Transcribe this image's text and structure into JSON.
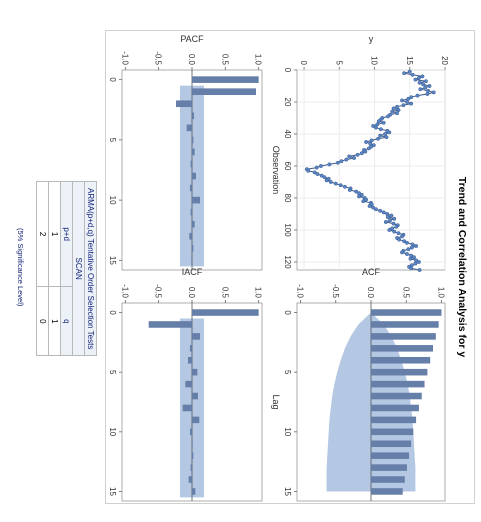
{
  "title": "Trend and Correlation Analysis for y",
  "colors": {
    "series": "#3a5a8c",
    "marker_fill": "#5a86c8",
    "bar": "#667fa8",
    "band": "#b4c8e4",
    "grid": "#e8e8e8"
  },
  "table": {
    "caption": "ARMA(p+d,q) Tentative Order Selection Tests",
    "method": "SCAN",
    "col_p": "p+d",
    "col_q": "q",
    "rows": [
      {
        "p": "1",
        "q": "1"
      },
      {
        "p": "2",
        "q": "0"
      }
    ],
    "note": "(5% Significance Level)"
  },
  "chart_data": [
    {
      "type": "line",
      "panel": "series",
      "xlabel": "Observation",
      "ylabel": "y",
      "xlim": [
        0,
        125
      ],
      "ylim": [
        -1,
        20
      ],
      "xticks": [
        0,
        20,
        40,
        60,
        80,
        100,
        120
      ],
      "yticks": [
        0,
        5,
        10,
        15,
        20
      ],
      "y": [
        15,
        14.2,
        15.4,
        16.8,
        16.3,
        15.8,
        17.3,
        16.4,
        16.9,
        17.8,
        17.2,
        16.5,
        17.6,
        18.4,
        17.5,
        16.1,
        15.2,
        14.8,
        13.9,
        14.6,
        15.2,
        14.1,
        13.2,
        12.7,
        13.4,
        12.5,
        13.2,
        12.2,
        11.9,
        11.1,
        10.9,
        10.6,
        11.3,
        10.4,
        9.8,
        10.2,
        10.9,
        11.8,
        12.1,
        11.5,
        10.8,
        11.7,
        10.5,
        9.6,
        8.8,
        9.4,
        9.9,
        9.5,
        9.2,
        8.5,
        8.7,
        8.2,
        7.6,
        6.4,
        7.1,
        6,
        5.3,
        4.8,
        3.6,
        2.4,
        1.8,
        0.4,
        0.6,
        1.5,
        1.9,
        2.5,
        2.9,
        3.5,
        3.2,
        3.8,
        4.5,
        5.2,
        5.8,
        6.6,
        6.5,
        7.4,
        7.8,
        8.2,
        7.8,
        8.6,
        8.8,
        8.4,
        9.5,
        9.6,
        9.3,
        9.8,
        10.2,
        10.8,
        11.3,
        11.8,
        12.4,
        11.9,
        12.8,
        12.2,
        11.6,
        12.7,
        13.3,
        13.1,
        12.5,
        12.1,
        12.8,
        13.4,
        14.1,
        13.9,
        13.2,
        13.5,
        14.2,
        14.6,
        15.4,
        15.9,
        15.3,
        14.8,
        14.1,
        13.9,
        14.6,
        15.2,
        15.6,
        15.1,
        15.9,
        16.3,
        15.8,
        15.3,
        14.9,
        15.2,
        16.4
      ]
    },
    {
      "type": "bar",
      "panel": "acf",
      "xlabel": "Lag",
      "ylabel": "ACF",
      "xlim": [
        -0.8,
        15.8
      ],
      "ylim": [
        -1.05,
        1.05
      ],
      "xticks": [
        0,
        5,
        10,
        15
      ],
      "yticks": [
        -1.0,
        -0.5,
        0.0,
        0.5,
        1.0
      ],
      "band_upper": [
        0,
        0.18,
        0.29,
        0.37,
        0.43,
        0.48,
        0.52,
        0.55,
        0.57,
        0.59,
        0.6,
        0.61,
        0.62,
        0.63,
        0.63,
        0.63
      ],
      "values": [
        1.0,
        0.96,
        0.92,
        0.88,
        0.84,
        0.8,
        0.76,
        0.72,
        0.68,
        0.64,
        0.6,
        0.57,
        0.54,
        0.51,
        0.48,
        0.45
      ]
    },
    {
      "type": "bar",
      "panel": "pacf",
      "xlabel": "Lag",
      "ylabel": "PACF",
      "xlim": [
        -0.8,
        15.8
      ],
      "ylim": [
        -1.05,
        1.05
      ],
      "xticks": [
        0,
        5,
        10,
        15
      ],
      "yticks": [
        -1.0,
        -0.5,
        0.0,
        0.5,
        1.0
      ],
      "band": 0.18,
      "values": [
        1.0,
        0.96,
        -0.24,
        0.03,
        -0.08,
        0.02,
        0.04,
        -0.02,
        0.06,
        -0.03,
        0.12,
        -0.02,
        0.04,
        -0.04,
        0.02,
        -0.01
      ]
    },
    {
      "type": "bar",
      "panel": "iacf",
      "xlabel": "Lag",
      "ylabel": "IACF",
      "xlim": [
        -0.8,
        15.8
      ],
      "ylim": [
        -1.05,
        1.05
      ],
      "xticks": [
        0,
        5,
        10,
        15
      ],
      "yticks": [
        -1.0,
        -0.5,
        0.0,
        0.5,
        1.0
      ],
      "band": 0.18,
      "values": [
        1.0,
        -0.65,
        0.12,
        -0.03,
        -0.06,
        0.08,
        -0.1,
        0.09,
        -0.14,
        0.11,
        -0.03,
        0.01,
        0.02,
        -0.02,
        -0.05,
        0.05
      ]
    }
  ]
}
